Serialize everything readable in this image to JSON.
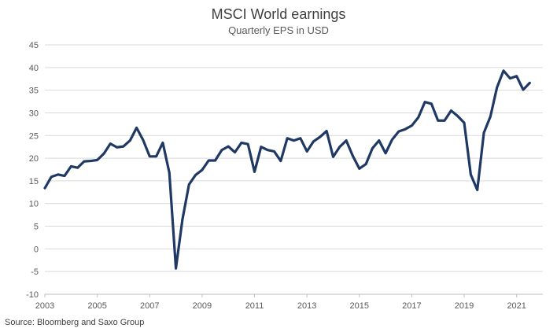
{
  "chart_data": {
    "type": "line",
    "title": "MSCI World earnings",
    "subtitle": "Quarterly EPS in USD",
    "xlabel": "",
    "ylabel": "",
    "ylim": [
      -10,
      45
    ],
    "yticks": [
      -10,
      -5,
      0,
      5,
      10,
      15,
      20,
      25,
      30,
      35,
      40,
      45
    ],
    "xlim": [
      2003,
      2022
    ],
    "xticks": [
      "2003",
      "2005",
      "2007",
      "2009",
      "2011",
      "2013",
      "2015",
      "2017",
      "2019",
      "2021"
    ],
    "grid": {
      "y": true,
      "x": false
    },
    "legend": "none",
    "series": [
      {
        "color": "#1f3864",
        "x": [
          2003.0,
          2003.25,
          2003.5,
          2003.75,
          2004.0,
          2004.25,
          2004.5,
          2004.75,
          2005.0,
          2005.25,
          2005.5,
          2005.75,
          2006.0,
          2006.25,
          2006.5,
          2006.75,
          2007.0,
          2007.25,
          2007.5,
          2007.75,
          2008.0,
          2008.25,
          2008.5,
          2008.75,
          2009.0,
          2009.25,
          2009.5,
          2009.75,
          2010.0,
          2010.25,
          2010.5,
          2010.75,
          2011.0,
          2011.25,
          2011.5,
          2011.75,
          2012.0,
          2012.25,
          2012.5,
          2012.75,
          2013.0,
          2013.25,
          2013.5,
          2013.75,
          2014.0,
          2014.25,
          2014.5,
          2014.75,
          2015.0,
          2015.25,
          2015.5,
          2015.75,
          2016.0,
          2016.25,
          2016.5,
          2016.75,
          2017.0,
          2017.25,
          2017.5,
          2017.75,
          2018.0,
          2018.25,
          2018.5,
          2018.75,
          2019.0,
          2019.25,
          2019.5,
          2019.75,
          2020.0,
          2020.25,
          2020.5,
          2020.75,
          2021.0,
          2021.25,
          2021.5
        ],
        "values": [
          13.4,
          15.9,
          16.4,
          16.1,
          18.2,
          17.9,
          19.3,
          19.4,
          19.6,
          21.0,
          23.2,
          22.4,
          22.6,
          23.9,
          26.7,
          24.0,
          20.4,
          20.4,
          23.4,
          16.8,
          -4.3,
          6.5,
          14.2,
          16.3,
          17.4,
          19.5,
          19.5,
          21.8,
          22.6,
          21.3,
          23.4,
          23.1,
          17.0,
          22.5,
          21.8,
          21.5,
          19.4,
          24.4,
          23.9,
          24.4,
          21.5,
          23.7,
          24.7,
          26.0,
          20.3,
          22.5,
          23.9,
          20.5,
          17.7,
          18.7,
          22.2,
          23.9,
          21.1,
          24.1,
          25.9,
          26.4,
          27.2,
          29.0,
          32.4,
          32.0,
          28.3,
          28.3,
          30.5,
          29.3,
          27.8,
          16.4,
          13.0,
          25.6,
          29.2,
          35.6,
          39.3,
          37.6,
          38.1,
          35.1,
          36.6
        ]
      }
    ]
  },
  "source": "Source: Bloomberg and Saxo Group"
}
